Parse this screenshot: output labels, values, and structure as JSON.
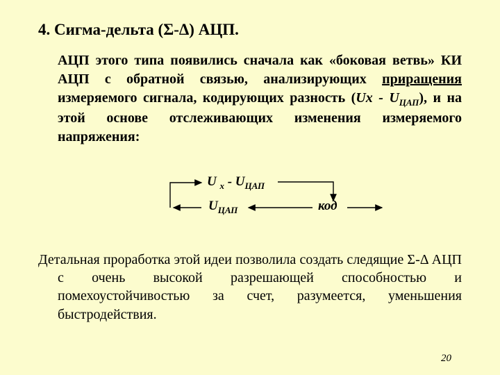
{
  "title": "4. Сигма-дельта (Σ-Δ) АЦП.",
  "para1_html": "АЦП этого типа появились сначала как «боковая ветвь» КИ АЦП с обратной связью, анализирующих <span class='underline'>приращения </span> измеряемого сигнала, кодирующих разность (<span class='italic'>Uх - U<span class='sub'>ЦАП</span></span>), и на этой основе отслеживающих изменения измеряемого напряжения:",
  "diagram": {
    "top_expr_html": "U <span class='sub'>x</span> - U<span class='sub'>ЦАП</span>",
    "bottom_left_html": "U<span class='sub'>ЦАП</span>",
    "bottom_right": "код",
    "arrow_color": "#000000"
  },
  "para2": "Детальная проработка этой идеи позволила создать следящие Σ-Δ АЦП с очень высокой разрешающей способностью и помехоустойчивостью за счет, разумеется, уменьшения быстродействия.",
  "pagenum": "20"
}
